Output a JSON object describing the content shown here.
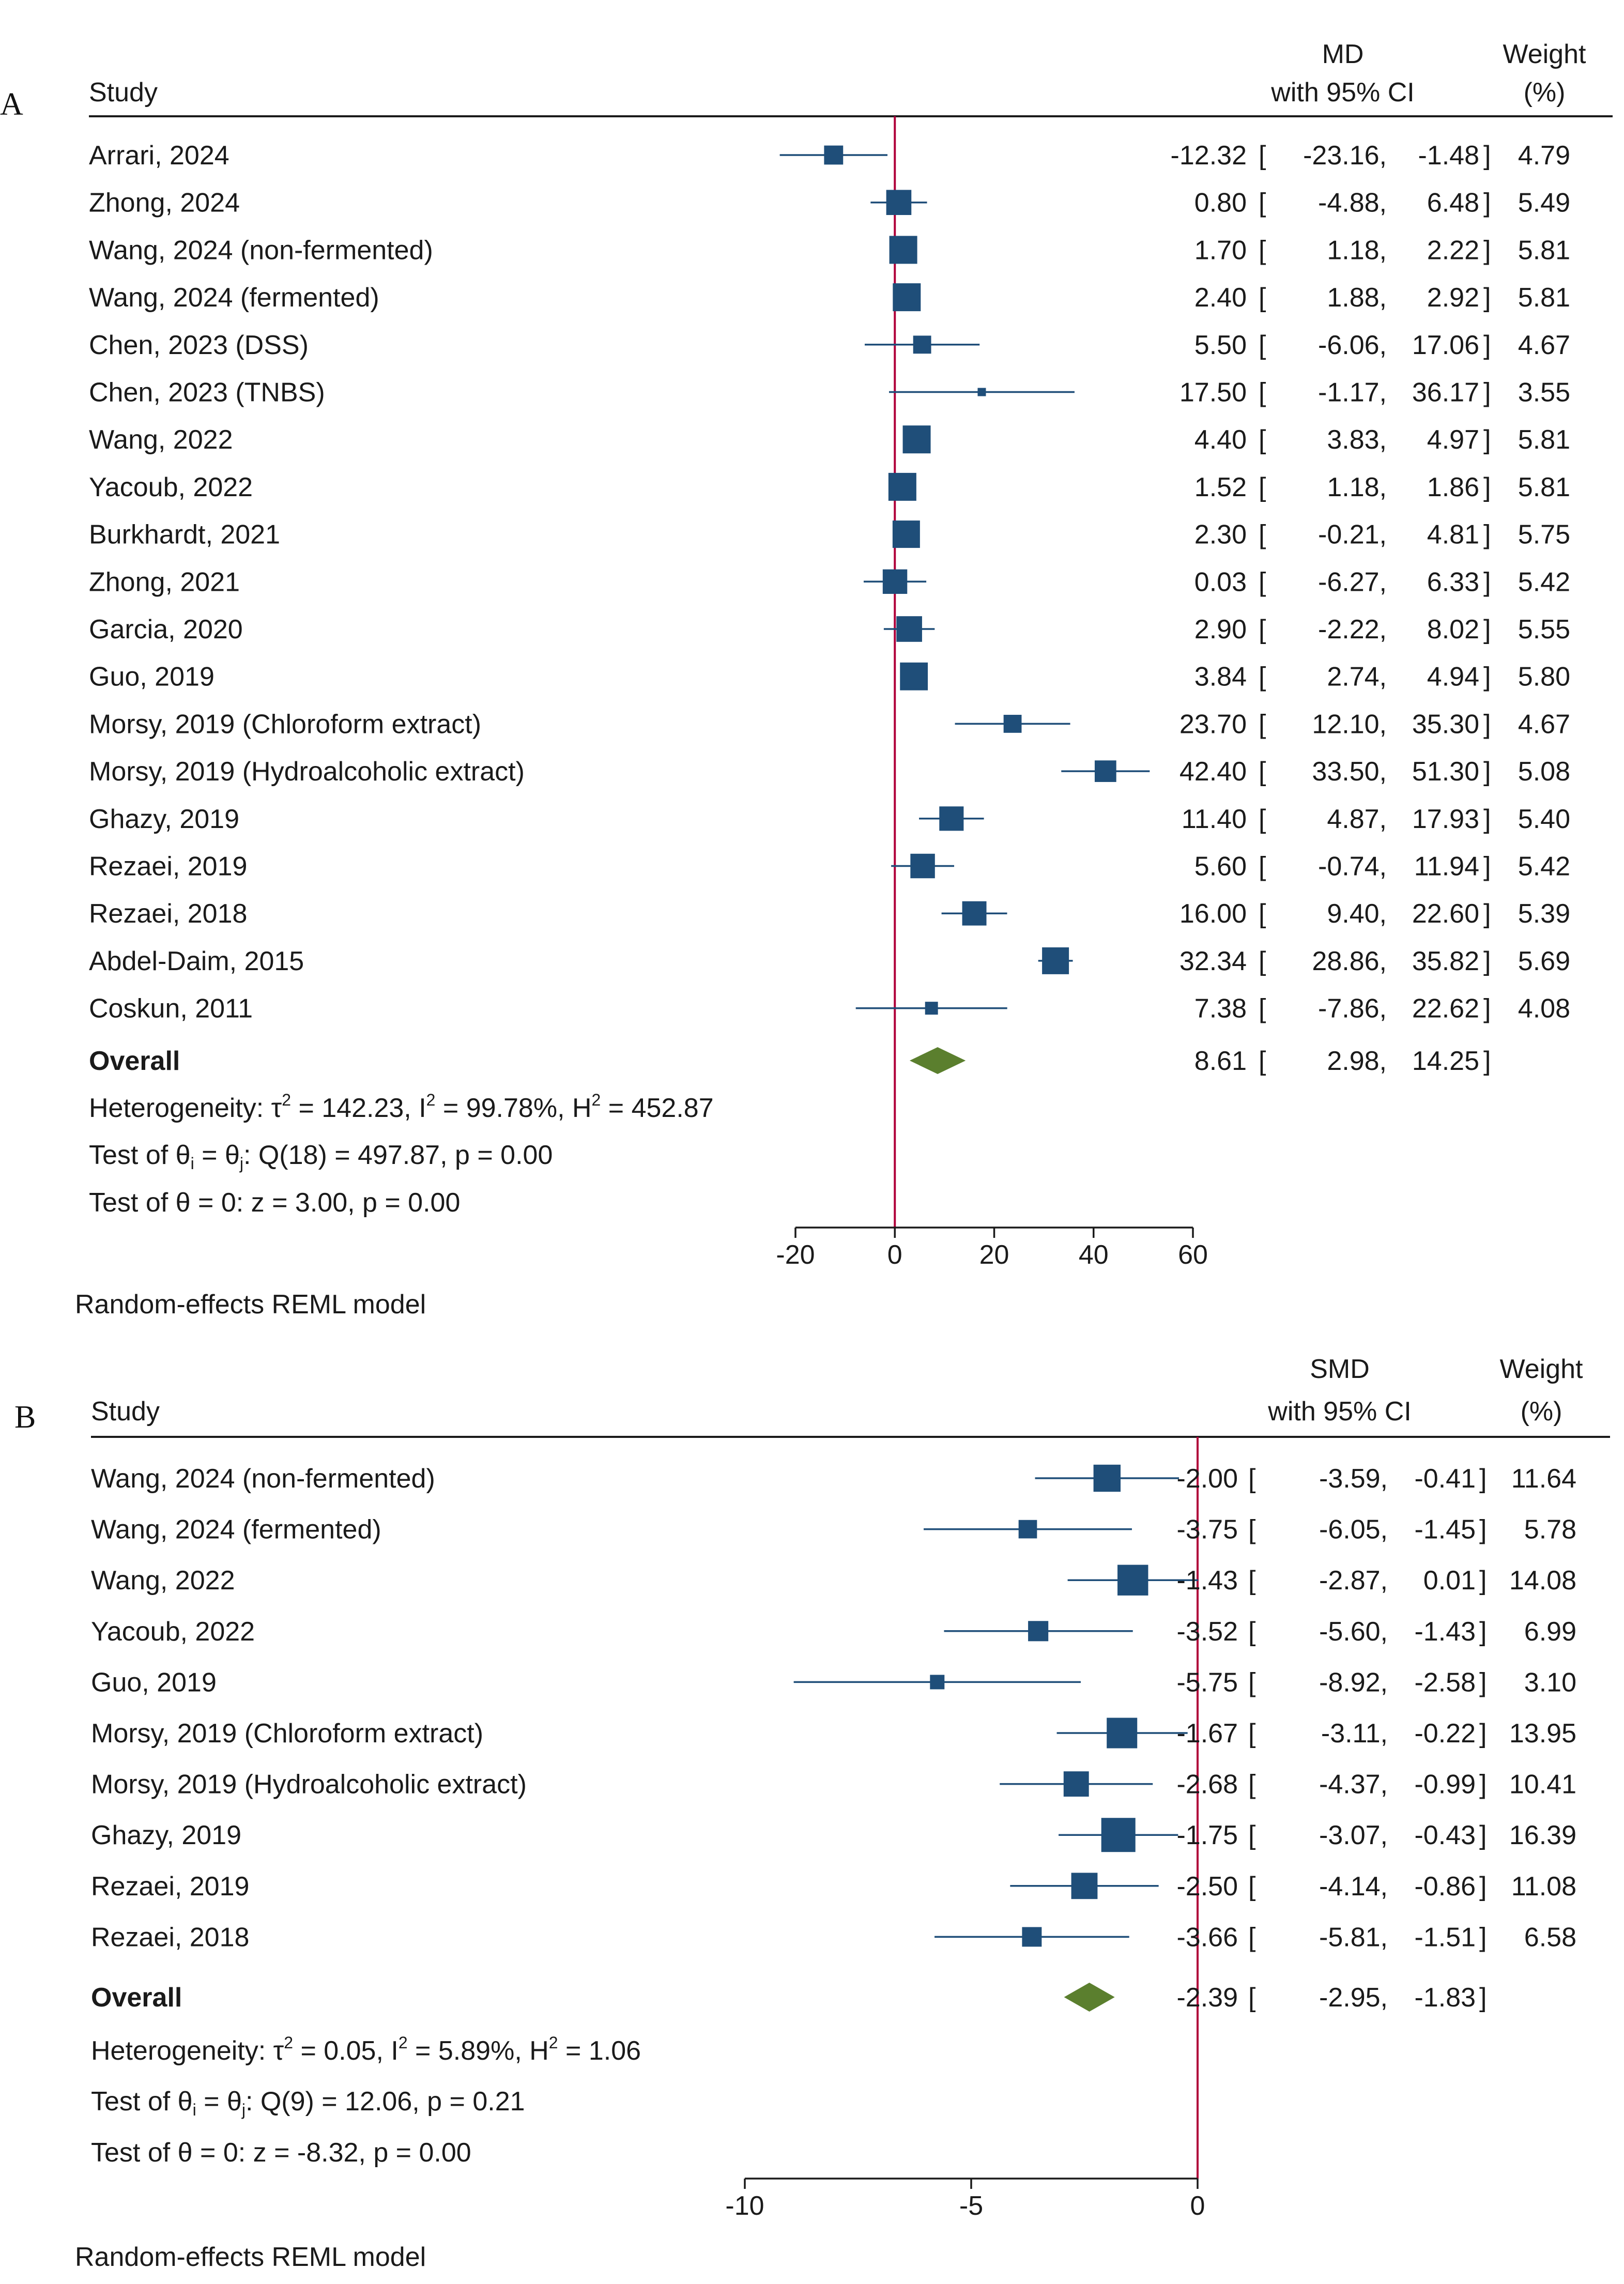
{
  "chart_data": [
    {
      "type": "forest",
      "panel_label": "A",
      "columns": {
        "study": "Study",
        "effect_line1": "MD",
        "effect_line2": "with 95% CI",
        "weight_line1": "Weight",
        "weight_line2": "(%)"
      },
      "studies": [
        {
          "label": "Arrari, 2024",
          "est": -12.32,
          "lo": -23.16,
          "hi": -1.48,
          "weight": 4.79
        },
        {
          "label": "Zhong, 2024",
          "est": 0.8,
          "lo": -4.88,
          "hi": 6.48,
          "weight": 5.49
        },
        {
          "label": "Wang, 2024 (non-fermented)",
          "est": 1.7,
          "lo": 1.18,
          "hi": 2.22,
          "weight": 5.81
        },
        {
          "label": "Wang, 2024 (fermented)",
          "est": 2.4,
          "lo": 1.88,
          "hi": 2.92,
          "weight": 5.81
        },
        {
          "label": "Chen, 2023 (DSS)",
          "est": 5.5,
          "lo": -6.06,
          "hi": 17.06,
          "weight": 4.67
        },
        {
          "label": "Chen, 2023 (TNBS)",
          "est": 17.5,
          "lo": -1.17,
          "hi": 36.17,
          "weight": 3.55
        },
        {
          "label": "Wang, 2022",
          "est": 4.4,
          "lo": 3.83,
          "hi": 4.97,
          "weight": 5.81
        },
        {
          "label": "Yacoub, 2022",
          "est": 1.52,
          "lo": 1.18,
          "hi": 1.86,
          "weight": 5.81
        },
        {
          "label": "Burkhardt, 2021",
          "est": 2.3,
          "lo": -0.21,
          "hi": 4.81,
          "weight": 5.75
        },
        {
          "label": "Zhong, 2021",
          "est": 0.03,
          "lo": -6.27,
          "hi": 6.33,
          "weight": 5.42
        },
        {
          "label": "Garcia, 2020",
          "est": 2.9,
          "lo": -2.22,
          "hi": 8.02,
          "weight": 5.55
        },
        {
          "label": "Guo, 2019",
          "est": 3.84,
          "lo": 2.74,
          "hi": 4.94,
          "weight": 5.8
        },
        {
          "label": "Morsy, 2019 (Chloroform extract)",
          "est": 23.7,
          "lo": 12.1,
          "hi": 35.3,
          "weight": 4.67
        },
        {
          "label": "Morsy, 2019 (Hydroalcoholic extract)",
          "est": 42.4,
          "lo": 33.5,
          "hi": 51.3,
          "weight": 5.08
        },
        {
          "label": "Ghazy, 2019",
          "est": 11.4,
          "lo": 4.87,
          "hi": 17.93,
          "weight": 5.4
        },
        {
          "label": "Rezaei, 2019",
          "est": 5.6,
          "lo": -0.74,
          "hi": 11.94,
          "weight": 5.42
        },
        {
          "label": "Rezaei, 2018",
          "est": 16.0,
          "lo": 9.4,
          "hi": 22.6,
          "weight": 5.39
        },
        {
          "label": "Abdel-Daim, 2015",
          "est": 32.34,
          "lo": 28.86,
          "hi": 35.82,
          "weight": 5.69
        },
        {
          "label": "Coskun, 2011",
          "est": 7.38,
          "lo": -7.86,
          "hi": 22.62,
          "weight": 4.08
        }
      ],
      "overall": {
        "label": "Overall",
        "est": 8.61,
        "lo": 2.98,
        "hi": 14.25
      },
      "stats": [
        {
          "pre": "Heterogeneity: ",
          "tau_sym": "τ",
          "sup1": "2",
          "mid1": " = 142.23, I",
          "sup2": "2",
          "mid2": " = 99.78%, H",
          "sup3": "2",
          "post": " = 452.87"
        },
        {
          "pre": "Test of ",
          "th_i": "θ",
          "sub_i": "i",
          "eq": " = ",
          "th_j": "θ",
          "sub_j": "j",
          "post": ": Q(18) = 497.87, p = 0.00"
        },
        {
          "pre": "Test of ",
          "theta": "θ",
          "post": " = 0: z = 3.00, p = 0.00"
        }
      ],
      "axis": {
        "ticks": [
          -20,
          0,
          20,
          40,
          60
        ],
        "xlim": [
          -20,
          60
        ],
        "null_line": 0
      },
      "footnote": "Random-effects REML model",
      "colors": {
        "marker": "#1f4e79",
        "diamond": "#5b7f2e",
        "null_line": "#b0003a",
        "text": "#1a1a1a"
      }
    },
    {
      "type": "forest",
      "panel_label": "B",
      "columns": {
        "study": "Study",
        "effect_line1": "SMD",
        "effect_line2": "with 95% CI",
        "weight_line1": "Weight",
        "weight_line2": "(%)"
      },
      "studies": [
        {
          "label": "Wang, 2024 (non-fermented)",
          "est": -2.0,
          "lo": -3.59,
          "hi": -0.41,
          "weight": 11.64
        },
        {
          "label": "Wang, 2024 (fermented)",
          "est": -3.75,
          "lo": -6.05,
          "hi": -1.45,
          "weight": 5.78
        },
        {
          "label": "Wang, 2022",
          "est": -1.43,
          "lo": -2.87,
          "hi": 0.01,
          "weight": 14.08
        },
        {
          "label": "Yacoub, 2022",
          "est": -3.52,
          "lo": -5.6,
          "hi": -1.43,
          "weight": 6.99
        },
        {
          "label": "Guo, 2019",
          "est": -5.75,
          "lo": -8.92,
          "hi": -2.58,
          "weight": 3.1
        },
        {
          "label": "Morsy, 2019 (Chloroform extract)",
          "est": -1.67,
          "lo": -3.11,
          "hi": -0.22,
          "weight": 13.95
        },
        {
          "label": "Morsy, 2019 (Hydroalcoholic extract)",
          "est": -2.68,
          "lo": -4.37,
          "hi": -0.99,
          "weight": 10.41
        },
        {
          "label": "Ghazy, 2019",
          "est": -1.75,
          "lo": -3.07,
          "hi": -0.43,
          "weight": 16.39
        },
        {
          "label": "Rezaei, 2019",
          "est": -2.5,
          "lo": -4.14,
          "hi": -0.86,
          "weight": 11.08
        },
        {
          "label": "Rezaei, 2018",
          "est": -3.66,
          "lo": -5.81,
          "hi": -1.51,
          "weight": 6.58
        }
      ],
      "overall": {
        "label": "Overall",
        "est": -2.39,
        "lo": -2.95,
        "hi": -1.83
      },
      "stats": [
        {
          "pre": "Heterogeneity: ",
          "tau_sym": "τ",
          "sup1": "2",
          "mid1": " = 0.05, I",
          "sup2": "2",
          "mid2": " = 5.89%, H",
          "sup3": "2",
          "post": " = 1.06"
        },
        {
          "pre": "Test of ",
          "th_i": "θ",
          "sub_i": "i",
          "eq": " = ",
          "th_j": "θ",
          "sub_j": "j",
          "post": ": Q(9) = 12.06, p = 0.21"
        },
        {
          "pre": "Test of ",
          "theta": "θ",
          "post": " = 0: z = -8.32, p = 0.00"
        }
      ],
      "axis": {
        "ticks": [
          -10,
          -5,
          0
        ],
        "xlim": [
          -10,
          0
        ],
        "null_line": 0
      },
      "footnote": "Random-effects REML model",
      "colors": {
        "marker": "#1f4e79",
        "diamond": "#5b7f2e",
        "null_line": "#b0003a",
        "text": "#1a1a1a"
      }
    }
  ]
}
